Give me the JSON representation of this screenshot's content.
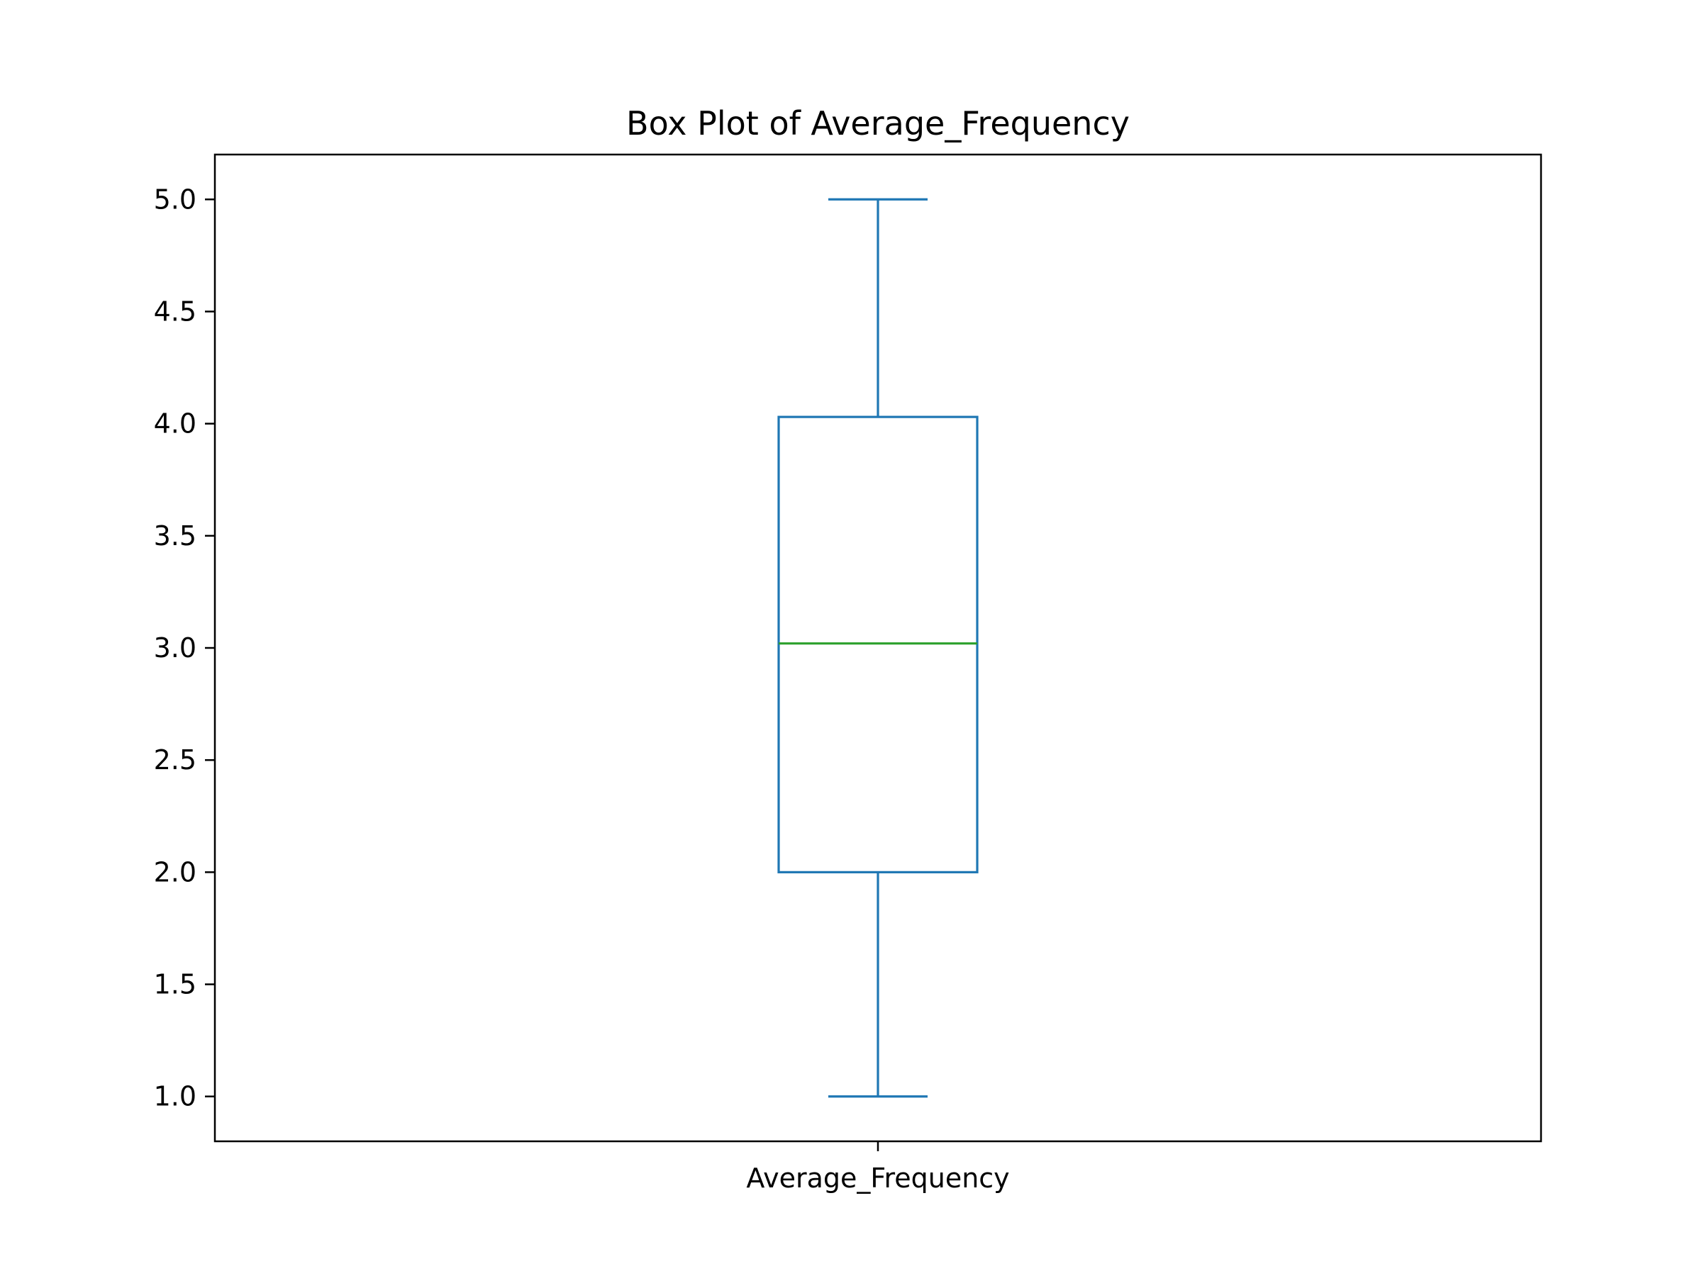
{
  "chart_data": {
    "type": "box",
    "title": "Box Plot of Average_Frequency",
    "xlabel": "",
    "ylabel": "",
    "categories": [
      "Average_Frequency"
    ],
    "series": [
      {
        "values": {
          "whisker_low": 1.0,
          "q1": 2.0,
          "median": 3.02,
          "q3": 4.03,
          "whisker_high": 5.0
        }
      }
    ],
    "ylim": [
      0.8,
      5.2
    ],
    "yticks": [
      1.0,
      1.5,
      2.0,
      2.5,
      3.0,
      3.5,
      4.0,
      4.5,
      5.0
    ],
    "ytick_labels": [
      "1.0",
      "1.5",
      "2.0",
      "2.5",
      "3.0",
      "3.5",
      "4.0",
      "4.5",
      "5.0"
    ],
    "grid": false,
    "legend": "none",
    "colors": {
      "box": "#1f77b4",
      "median": "#2ca02c",
      "axes": "#000000"
    }
  }
}
